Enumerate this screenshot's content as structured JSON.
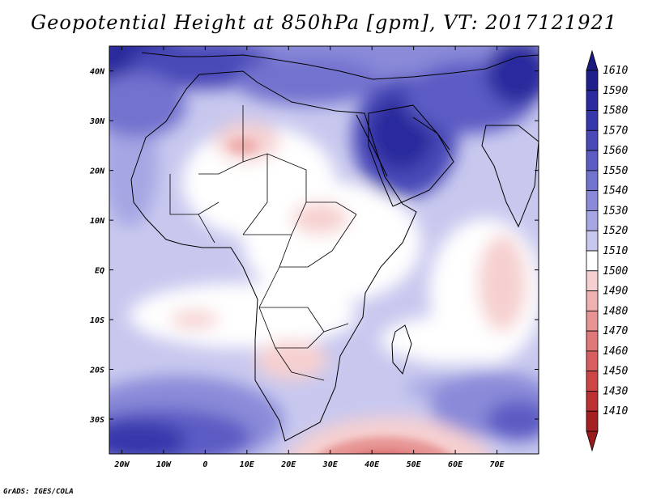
{
  "title": "Geopotential Height at 850hPa [gpm], VT: 2017121921",
  "credit": "GrADS: IGES/COLA",
  "map": {
    "lon_range": [
      -23,
      80
    ],
    "lat_range": [
      -37,
      45
    ],
    "lat_ticks": [
      {
        "lat": 40,
        "label": "40N"
      },
      {
        "lat": 30,
        "label": "30N"
      },
      {
        "lat": 20,
        "label": "20N"
      },
      {
        "lat": 10,
        "label": "10N"
      },
      {
        "lat": 0,
        "label": "EQ"
      },
      {
        "lat": -10,
        "label": "10S"
      },
      {
        "lat": -20,
        "label": "20S"
      },
      {
        "lat": -30,
        "label": "30S"
      }
    ],
    "lon_ticks": [
      {
        "lon": -20,
        "label": "20W"
      },
      {
        "lon": -10,
        "label": "10W"
      },
      {
        "lon": 0,
        "label": "0"
      },
      {
        "lon": 10,
        "label": "10E"
      },
      {
        "lon": 20,
        "label": "20E"
      },
      {
        "lon": 30,
        "label": "30E"
      },
      {
        "lon": 40,
        "label": "40E"
      },
      {
        "lon": 50,
        "label": "50E"
      },
      {
        "lon": 60,
        "label": "60E"
      },
      {
        "lon": 70,
        "label": "70E"
      }
    ]
  },
  "colorbar": {
    "levels": [
      {
        "label": "1610",
        "color": "#1e1e8c"
      },
      {
        "label": "1590",
        "color": "#2a2a9e"
      },
      {
        "label": "1580",
        "color": "#3737ac"
      },
      {
        "label": "1570",
        "color": "#4949b8"
      },
      {
        "label": "1560",
        "color": "#5c5cc4"
      },
      {
        "label": "1550",
        "color": "#7272cf"
      },
      {
        "label": "1540",
        "color": "#8a8ad9"
      },
      {
        "label": "1530",
        "color": "#a6a6e4"
      },
      {
        "label": "1520",
        "color": "#c8c8ef"
      },
      {
        "label": "1510",
        "color": "#ffffff"
      },
      {
        "label": "1500",
        "color": "#f6d0d0"
      },
      {
        "label": "1490",
        "color": "#efb0b0"
      },
      {
        "label": "1480",
        "color": "#e79494"
      },
      {
        "label": "1470",
        "color": "#df7878"
      },
      {
        "label": "1460",
        "color": "#d65e5e"
      },
      {
        "label": "1450",
        "color": "#cc4646"
      },
      {
        "label": "1430",
        "color": "#bb3030"
      },
      {
        "label": "1410",
        "color": "#a52020"
      }
    ],
    "top_arrow_color": "#1a1a80",
    "bottom_arrow_color": "#991a1a"
  }
}
